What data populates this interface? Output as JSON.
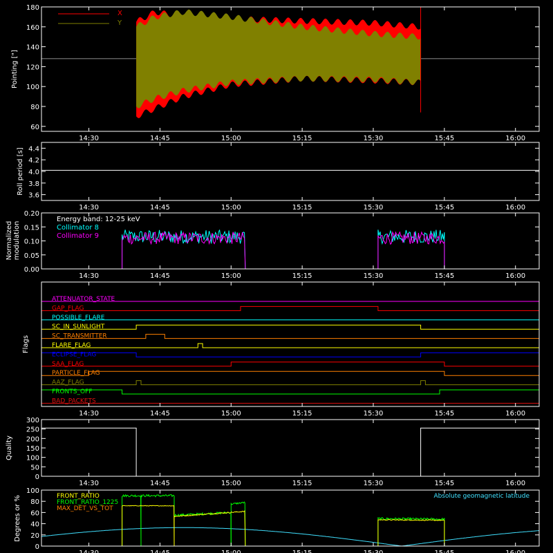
{
  "colors": {
    "background": "#000000",
    "axes": "#ffffff",
    "red": "#ff0000",
    "olive": "#808000",
    "cyan": "#00ffff",
    "magenta": "#ff00ff",
    "yellow": "#ffff00",
    "orange": "#ff8000",
    "blue": "#0000ff",
    "green": "#00ff00",
    "crimson": "#e01010",
    "lightcyan": "#40e0ff"
  },
  "x_ticks": [
    "14:30",
    "14:45",
    "15:00",
    "15:15",
    "15:30",
    "15:45",
    "16:00"
  ],
  "chart_data": [
    {
      "type": "area",
      "ylabel": "Pointing [\"]",
      "ylim": [
        55,
        180
      ],
      "yticks": [
        "60",
        "80",
        "100",
        "120",
        "140",
        "160",
        "180"
      ],
      "xlim": [
        "14:20",
        "16:05"
      ],
      "legend_placement": "top-left",
      "reference_line": 128,
      "series": [
        {
          "name": "X",
          "color": "red",
          "start": "14:40",
          "end": "15:40",
          "upper": [
            [
              "14:40",
              165
            ],
            [
              "14:44",
              175
            ],
            [
              "14:50",
              170
            ],
            [
              "15:00",
              168
            ],
            [
              "15:15",
              166
            ],
            [
              "15:30",
              164
            ],
            [
              "15:40",
              160
            ]
          ],
          "lower": [
            [
              "14:40",
              70
            ],
            [
              "14:44",
              78
            ],
            [
              "14:50",
              90
            ],
            [
              "15:00",
              102
            ],
            [
              "15:15",
              108
            ],
            [
              "15:30",
              106
            ],
            [
              "15:40",
              104
            ]
          ]
        },
        {
          "name": "Y",
          "color": "olive",
          "start": "14:40",
          "end": "15:40",
          "upper": [
            [
              "14:40",
              160
            ],
            [
              "14:44",
              170
            ],
            [
              "14:50",
              175
            ],
            [
              "15:00",
              170
            ],
            [
              "15:15",
              160
            ],
            [
              "15:30",
              153
            ],
            [
              "15:40",
              150
            ]
          ],
          "lower": [
            [
              "14:40",
              80
            ],
            [
              "14:44",
              88
            ],
            [
              "14:50",
              96
            ],
            [
              "15:00",
              104
            ],
            [
              "15:15",
              108
            ],
            [
              "15:30",
              107
            ],
            [
              "15:40",
              104
            ]
          ]
        }
      ]
    },
    {
      "type": "line",
      "ylabel": "Roll period [s]",
      "ylim": [
        3.5,
        4.5
      ],
      "yticks": [
        "3.6",
        "3.8",
        "4.0",
        "4.2",
        "4.4"
      ],
      "xlim": [
        "14:20",
        "16:05"
      ],
      "series": [
        {
          "name": "",
          "color": "axes",
          "constant": 4.02
        }
      ]
    },
    {
      "type": "line",
      "ylabel_lines": [
        "Normalized",
        "modulation"
      ],
      "ylim": [
        0,
        0.2
      ],
      "yticks": [
        "0.00",
        "0.05",
        "0.10",
        "0.15",
        "0.20"
      ],
      "xlim": [
        "14:20",
        "16:05"
      ],
      "legend_placement": "top-left",
      "annotation": "Energy band: 12-25 keV",
      "intervals": [
        [
          "14:37",
          "15:03"
        ],
        [
          "15:31",
          "15:45"
        ]
      ],
      "series": [
        {
          "name": "Collimator 8",
          "color": "cyan",
          "mean": 0.115,
          "noise": 0.025
        },
        {
          "name": "Collimator 9",
          "color": "magenta",
          "mean": 0.11,
          "noise": 0.022
        }
      ]
    },
    {
      "type": "line",
      "ylabel": "Flags",
      "xlim": [
        "14:20",
        "16:05"
      ],
      "flags": [
        {
          "name": "ATTENUATOR_STATE",
          "color": "magenta",
          "segments": [
            [
              "14:20",
              "16:05",
              0
            ]
          ]
        },
        {
          "name": "GAP_FLAG",
          "color": "red",
          "segments": [
            [
              "14:20",
              "15:02",
              0
            ],
            [
              "15:02",
              "15:31",
              1
            ],
            [
              "15:31",
              "16:05",
              0
            ]
          ]
        },
        {
          "name": "POSSIBLE_FLARE",
          "color": "cyan",
          "segments": [
            [
              "14:20",
              "16:05",
              0
            ]
          ]
        },
        {
          "name": "SC_IN_SUNLIGHT",
          "color": "yellow",
          "segments": [
            [
              "14:20",
              "14:40",
              0
            ],
            [
              "14:40",
              "15:40",
              1
            ],
            [
              "15:40",
              "16:05",
              0
            ]
          ]
        },
        {
          "name": "SC_TRANSMITTER",
          "color": "orange",
          "segments": [
            [
              "14:20",
              "14:42",
              0
            ],
            [
              "14:42",
              "14:46",
              1
            ],
            [
              "14:46",
              "16:05",
              0
            ]
          ]
        },
        {
          "name": "FLARE_FLAG",
          "color": "yellow",
          "segments": [
            [
              "14:20",
              "14:53",
              0
            ],
            [
              "14:53",
              "14:54",
              1
            ],
            [
              "14:54",
              "16:05",
              0
            ]
          ]
        },
        {
          "name": "ECLIPSE_FLAG",
          "color": "blue",
          "segments": [
            [
              "14:20",
              "14:40",
              1
            ],
            [
              "14:40",
              "15:40",
              0
            ],
            [
              "15:40",
              "16:05",
              1
            ]
          ]
        },
        {
          "name": "SAA_FLAG",
          "color": "red",
          "segments": [
            [
              "14:20",
              "15:00",
              0
            ],
            [
              "15:00",
              "15:45",
              1
            ],
            [
              "15:45",
              "16:05",
              0
            ]
          ]
        },
        {
          "name": "PARTICLE_FLAG",
          "color": "orange",
          "segments": [
            [
              "14:20",
              "14:30",
              0
            ],
            [
              "14:30",
              "14:40",
              1
            ],
            [
              "14:40",
              "15:31",
              1
            ],
            [
              "15:31",
              "15:45",
              1
            ],
            [
              "15:45",
              "16:05",
              0
            ]
          ]
        },
        {
          "name": "AAZ_FLAG",
          "color": "olive",
          "segments": [
            [
              "14:20",
              "14:40",
              0
            ],
            [
              "14:40",
              "14:41",
              1
            ],
            [
              "14:41",
              "15:40",
              0
            ],
            [
              "15:40",
              "15:41",
              1
            ],
            [
              "15:41",
              "16:05",
              0
            ]
          ]
        },
        {
          "name": "FRONTS_OFF",
          "color": "green",
          "segments": [
            [
              "14:20",
              "14:37",
              1
            ],
            [
              "14:37",
              "15:44",
              0
            ],
            [
              "15:44",
              "16:05",
              1
            ]
          ]
        },
        {
          "name": "BAD_PACKETS",
          "color": "crimson",
          "segments": [
            [
              "14:20",
              "16:05",
              0
            ]
          ]
        }
      ]
    },
    {
      "type": "line",
      "ylabel": "Quality",
      "ylim": [
        0,
        300
      ],
      "yticks": [
        "0",
        "50",
        "100",
        "150",
        "200",
        "250",
        "300"
      ],
      "xlim": [
        "14:20",
        "16:05"
      ],
      "series": [
        {
          "name": "",
          "color": "axes",
          "points": [
            [
              "14:20",
              255
            ],
            [
              "14:40",
              255
            ],
            [
              "14:40",
              0
            ],
            [
              "15:40",
              0
            ],
            [
              "15:40",
              255
            ],
            [
              "16:05",
              255
            ]
          ]
        }
      ]
    },
    {
      "type": "line",
      "ylabel": "Degrees or %",
      "ylim": [
        0,
        100
      ],
      "yticks": [
        "0",
        "20",
        "40",
        "60",
        "80",
        "100"
      ],
      "xlim": [
        "14:20",
        "16:05"
      ],
      "legend_placement": "top-left",
      "annotation_right": "Absolute geomagnetic latitude",
      "series": [
        {
          "name": "FRONT_RATIO",
          "color": "yellow"
        },
        {
          "name": "FRONT_RATIO_1225",
          "color": "green"
        },
        {
          "name": "MAX_DET_VS_TOT",
          "color": "orange"
        },
        {
          "name": "Absolute geomagnetic latitude",
          "color": "lightcyan"
        }
      ]
    }
  ]
}
